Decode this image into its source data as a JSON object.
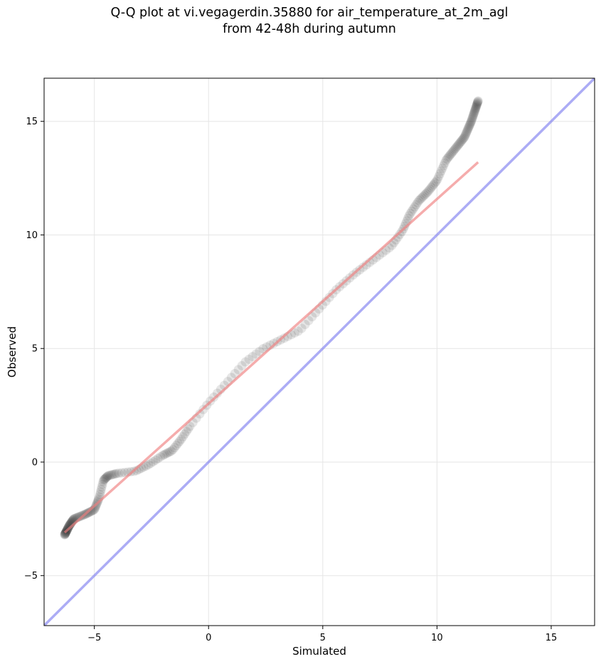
{
  "chart_data": {
    "type": "scatter",
    "title_lines": [
      "Q-Q plot at vi.vegagerdin.35880 for air_temperature_at_2m_agl",
      "from 42-48h during autumn"
    ],
    "xlabel": "Simulated",
    "ylabel": "Observed",
    "xlim": [
      -7.2,
      16.9
    ],
    "ylim": [
      -7.2,
      16.9
    ],
    "xticks": [
      -5,
      0,
      5,
      10,
      15
    ],
    "yticks": [
      -5,
      0,
      5,
      10,
      15
    ],
    "xtick_labels": [
      "−5",
      "0",
      "5",
      "10",
      "15"
    ],
    "ytick_labels": [
      "−5",
      "0",
      "5",
      "10",
      "15"
    ],
    "grid": true,
    "colors": {
      "points": "#333333",
      "fit_line": "#f08080",
      "identity_line": "#8080f0",
      "grid": "#e6e6e6"
    },
    "fit_line": {
      "x": [
        -6.3,
        11.8
      ],
      "y": [
        -3.1,
        13.2
      ]
    },
    "identity_line": {
      "x": [
        -7.2,
        16.9
      ],
      "y": [
        -7.2,
        16.9
      ]
    },
    "quantile_knots": {
      "x": [
        -6.3,
        -6.1,
        -5.9,
        -5.4,
        -5.0,
        -4.8,
        -4.6,
        -4.4,
        -4.0,
        -3.2,
        -2.6,
        -2.0,
        -1.6,
        -1.2,
        -0.8,
        0.0,
        0.8,
        1.6,
        2.4,
        3.2,
        4.0,
        4.8,
        5.6,
        6.4,
        7.2,
        8.0,
        8.5,
        8.8,
        9.2,
        9.6,
        10.0,
        10.4,
        10.8,
        11.2,
        11.5,
        11.8
      ],
      "y": [
        -3.2,
        -2.8,
        -2.5,
        -2.3,
        -2.1,
        -1.6,
        -0.8,
        -0.6,
        -0.5,
        -0.4,
        -0.1,
        0.3,
        0.5,
        1.0,
        1.6,
        2.6,
        3.5,
        4.4,
        5.0,
        5.4,
        5.8,
        6.7,
        7.6,
        8.3,
        8.9,
        9.5,
        10.2,
        10.9,
        11.5,
        11.9,
        12.4,
        13.3,
        13.8,
        14.3,
        15.0,
        15.9
      ]
    },
    "n_points": 260
  }
}
